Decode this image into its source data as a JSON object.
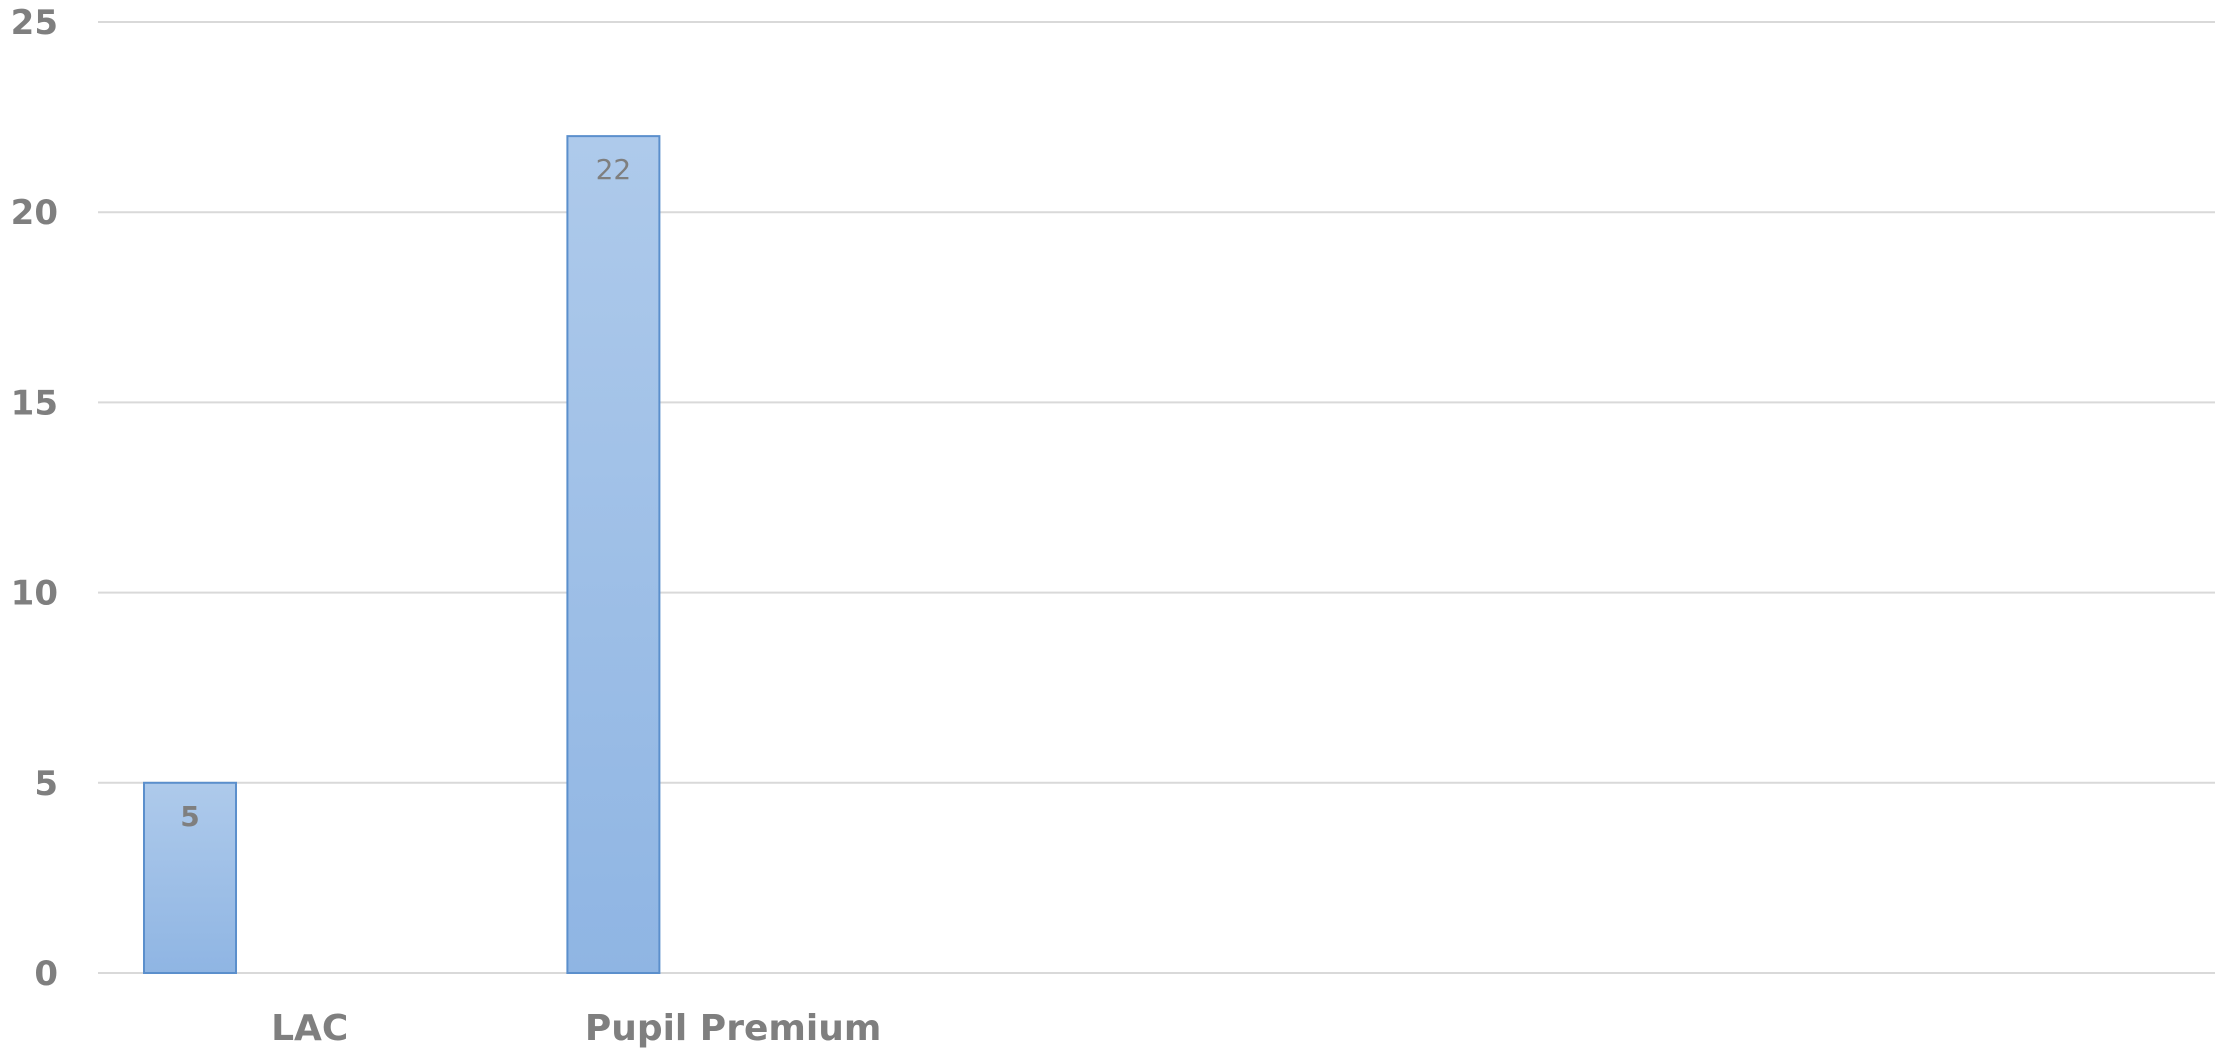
{
  "chart_data": {
    "type": "bar",
    "categories": [
      "LAC",
      "Pupil Premium",
      "",
      "",
      ""
    ],
    "values": [
      5,
      22,
      null,
      null,
      null
    ],
    "data_labels": [
      "5",
      "22",
      "",
      "",
      ""
    ],
    "ylim": [
      0,
      25
    ],
    "yticks": [
      0,
      5,
      10,
      15,
      20,
      25
    ],
    "grid": true,
    "legend": "none",
    "colors": {
      "bar_top": "#aecaeb",
      "bar_bottom": "#8fb5e3",
      "bar_border": "#5b8fcc",
      "text": "#7f7f7f",
      "grid": "#d9d9d9"
    }
  }
}
